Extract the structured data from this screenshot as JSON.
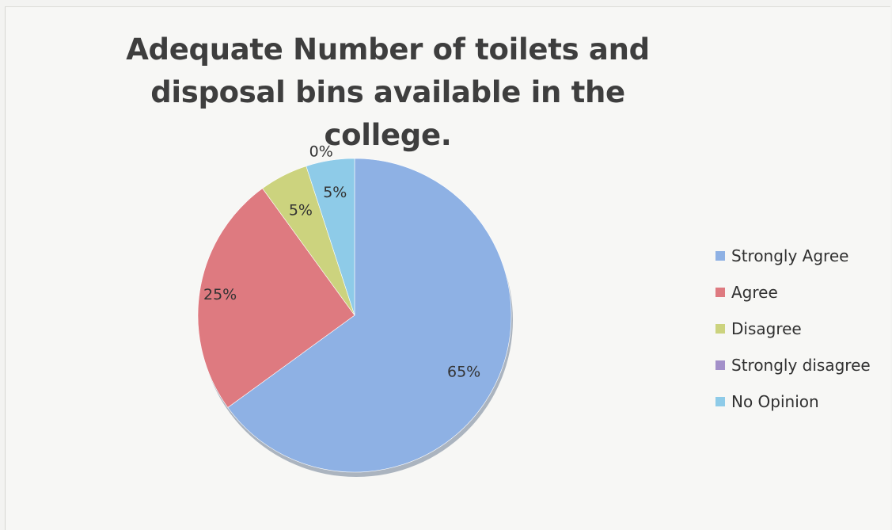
{
  "chart_data": {
    "type": "pie",
    "title": "Adequate Number of toilets and disposal bins available in the college.",
    "categories": [
      "Strongly Agree",
      "Agree",
      "Disagree",
      "Strongly disagree",
      "No Opinion"
    ],
    "values": [
      65,
      25,
      5,
      0,
      5
    ],
    "data_labels": [
      "65%",
      "25%",
      "5%",
      "0%",
      "5%"
    ],
    "colors": [
      "#8eb1e4",
      "#de7a80",
      "#ccd37e",
      "#a390c9",
      "#8ecbe8"
    ],
    "legend": {
      "position": "right",
      "items": [
        {
          "label": "Strongly Agree",
          "color": "#8eb1e4"
        },
        {
          "label": "Agree",
          "color": "#de7a80"
        },
        {
          "label": "Disagree",
          "color": "#ccd37e"
        },
        {
          "label": "Strongly disagree",
          "color": "#a390c9"
        },
        {
          "label": "No Opinion",
          "color": "#8ecbe8"
        }
      ]
    }
  }
}
